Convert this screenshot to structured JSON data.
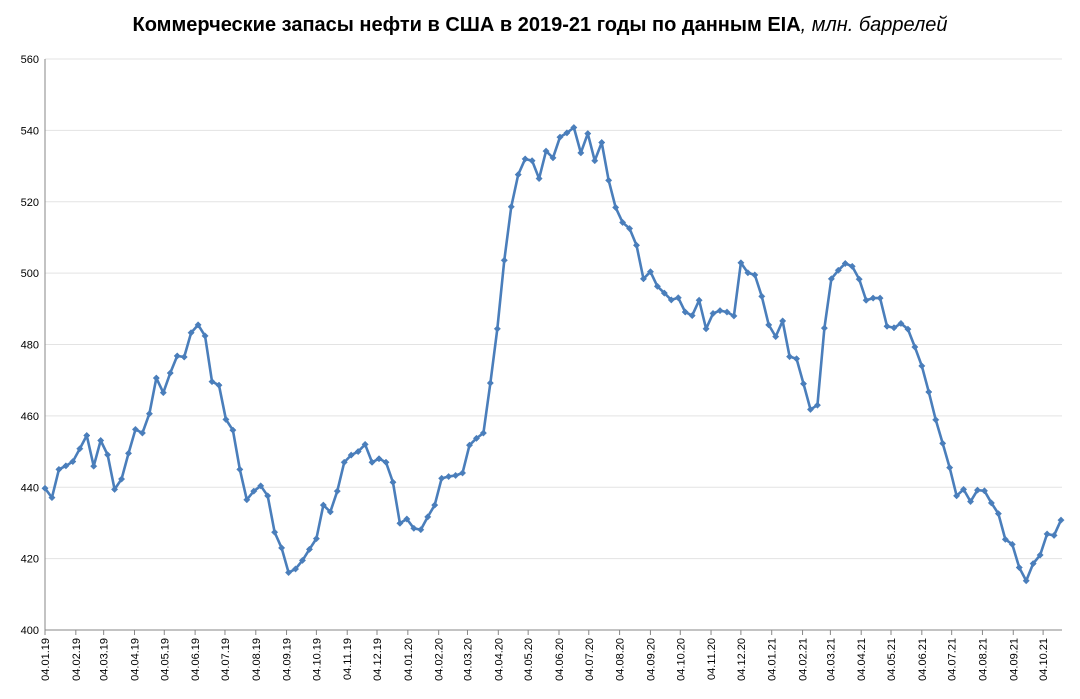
{
  "chart_data": {
    "type": "line",
    "title": "Коммерческие запасы нефти в США в 2019-21 годы по данным EIA",
    "title_unit": ", млн. баррелей",
    "ylim": [
      400,
      560
    ],
    "yticks": [
      400,
      420,
      440,
      460,
      480,
      500,
      520,
      540,
      560
    ],
    "grid": "horizontal",
    "color": "#4a7ebb",
    "x_tick_labels": [
      "04.01.19",
      "04.02.19",
      "04.03.19",
      "04.04.19",
      "04.05.19",
      "04.06.19",
      "04.07.19",
      "04.08.19",
      "04.09.19",
      "04.10.19",
      "04.11.19",
      "04.12.19",
      "04.01.20",
      "04.02.20",
      "04.03.20",
      "04.04.20",
      "04.05.20",
      "04.06.20",
      "04.07.20",
      "04.08.20",
      "04.09.20",
      "04.10.20",
      "04.11.20",
      "04.12.20",
      "04.01.21",
      "04.02.21",
      "04.03.21",
      "04.04.21",
      "04.05.21",
      "04.06.21",
      "04.07.21",
      "04.08.21",
      "04.09.21",
      "04.10.21"
    ],
    "x_tick_weeks": [
      0,
      4.43,
      8.43,
      12.86,
      17.14,
      21.57,
      25.86,
      30.29,
      34.71,
      39,
      43.43,
      47.71,
      52.14,
      56.57,
      60.71,
      65.14,
      69.43,
      73.86,
      78.14,
      82.57,
      87,
      91.29,
      95.71,
      100,
      104.43,
      108.86,
      112.86,
      117.29,
      121.57,
      126,
      130.29,
      134.71,
      139.14,
      143.43
    ],
    "values": [
      439.7,
      437.1,
      445,
      446,
      447.2,
      450.8,
      454.5,
      445.9,
      453.1,
      449.1,
      439.4,
      442.3,
      449.5,
      456.2,
      455.2,
      460.6,
      470.6,
      466.5,
      472,
      476.8,
      476.5,
      483.3,
      485.5,
      482.4,
      469.6,
      468.6,
      459,
      456,
      445,
      436.5,
      438.9,
      440.4,
      437.6,
      427.4,
      423,
      416.1,
      417.1,
      419.5,
      422.6,
      425.6,
      435,
      433.1,
      438.9,
      447,
      449,
      450,
      452,
      447,
      448,
      447,
      441.4,
      429.9,
      431.1,
      428.5,
      428.1,
      431.7,
      435,
      442.5,
      443,
      443.3,
      444,
      451.8,
      453.7,
      455.2,
      469.2,
      484.4,
      503.6,
      518.6,
      527.6,
      532,
      531.5,
      526.5,
      534.2,
      532.3,
      538.1,
      539.3,
      540.8,
      533.7,
      539.1,
      531.5,
      536.6,
      526,
      518.4,
      514.2,
      512.5,
      507.8,
      498.4,
      500.4,
      496.3,
      494.4,
      492.5,
      493.1,
      489.1,
      488.1,
      492.4,
      484.4,
      488.7,
      489.5,
      489.1,
      488,
      502.9,
      500.1,
      499.5,
      493.5,
      485.5,
      482.2,
      486.6,
      476.6,
      476,
      469,
      461.8,
      463,
      484.6,
      498.4,
      500.8,
      502.7,
      501.9,
      498.3,
      492.4,
      493,
      493,
      485.1,
      484.7,
      485.9,
      484.3,
      479.3,
      474,
      466.7,
      458.9,
      452.3,
      445.5,
      437.6,
      439.4,
      436,
      439.2,
      439,
      435.6,
      432.6,
      425.4,
      424,
      417.5,
      413.8,
      418.6,
      421,
      426.9,
      426.5,
      430.8
    ]
  }
}
